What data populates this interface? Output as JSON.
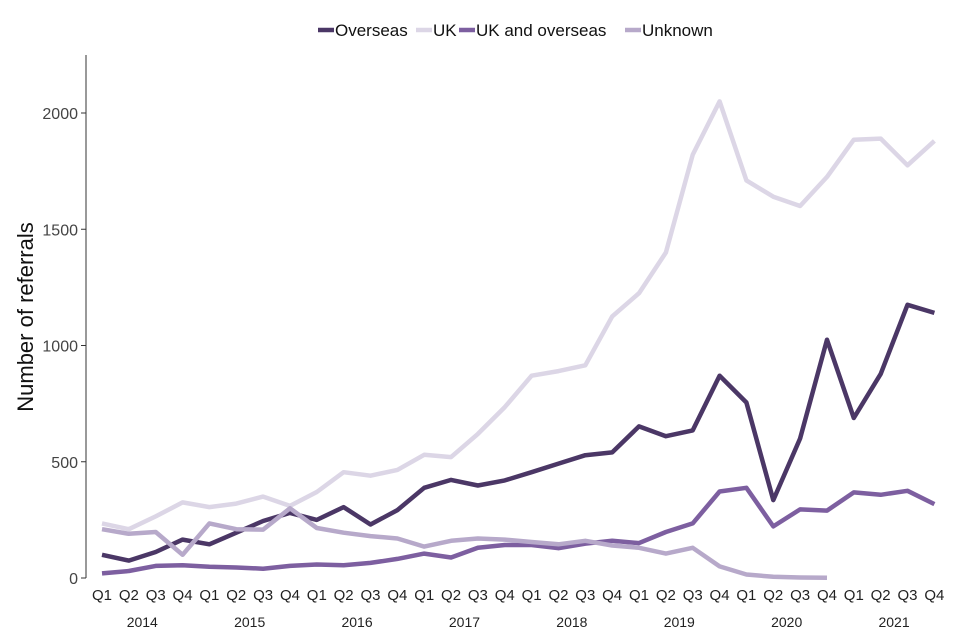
{
  "chart_data": {
    "type": "line",
    "title": "",
    "xlabel": "",
    "ylabel": "Number of referrals",
    "ylim": [
      0,
      2250
    ],
    "yticks": [
      0,
      500,
      1000,
      1500,
      2000
    ],
    "grid": false,
    "legend_position": "top-center",
    "categories": [
      "Q1",
      "Q2",
      "Q3",
      "Q4",
      "Q1",
      "Q2",
      "Q3",
      "Q4",
      "Q1",
      "Q2",
      "Q3",
      "Q4",
      "Q1",
      "Q2",
      "Q3",
      "Q4",
      "Q1",
      "Q2",
      "Q3",
      "Q4",
      "Q1",
      "Q2",
      "Q3",
      "Q4",
      "Q1",
      "Q2",
      "Q3",
      "Q4",
      "Q1",
      "Q2",
      "Q3",
      "Q4"
    ],
    "years": [
      "2014",
      "2015",
      "2016",
      "2017",
      "2018",
      "2019",
      "2020",
      "2021"
    ],
    "series": [
      {
        "name": "Overseas",
        "color": "#4b3766",
        "values": [
          100,
          75,
          112,
          165,
          145,
          195,
          245,
          280,
          250,
          305,
          230,
          292,
          388,
          422,
          398,
          420,
          455,
          492,
          528,
          540,
          652,
          610,
          635,
          870,
          755,
          335,
          600,
          1025,
          688,
          878,
          1175,
          1140
        ]
      },
      {
        "name": "UK",
        "color": "#dcd6e6",
        "values": [
          235,
          210,
          265,
          325,
          305,
          320,
          350,
          310,
          370,
          455,
          440,
          465,
          530,
          520,
          620,
          735,
          870,
          890,
          915,
          1125,
          1225,
          1400,
          1820,
          2050,
          1710,
          1640,
          1600,
          1725,
          1885,
          1890,
          1775,
          1880
        ]
      },
      {
        "name": "UK and overseas",
        "color": "#7d5fa0",
        "values": [
          20,
          30,
          52,
          55,
          48,
          45,
          40,
          52,
          58,
          55,
          65,
          82,
          105,
          88,
          130,
          142,
          142,
          128,
          148,
          160,
          150,
          198,
          235,
          372,
          388,
          222,
          295,
          290,
          368,
          358,
          375,
          318
        ]
      },
      {
        "name": "Unknown",
        "color": "#b7a9ca",
        "values": [
          210,
          190,
          198,
          100,
          235,
          210,
          208,
          300,
          215,
          195,
          180,
          170,
          135,
          160,
          170,
          165,
          155,
          145,
          160,
          140,
          130,
          105,
          130,
          50,
          15,
          5,
          2,
          1,
          null,
          null,
          null,
          null
        ]
      }
    ]
  }
}
